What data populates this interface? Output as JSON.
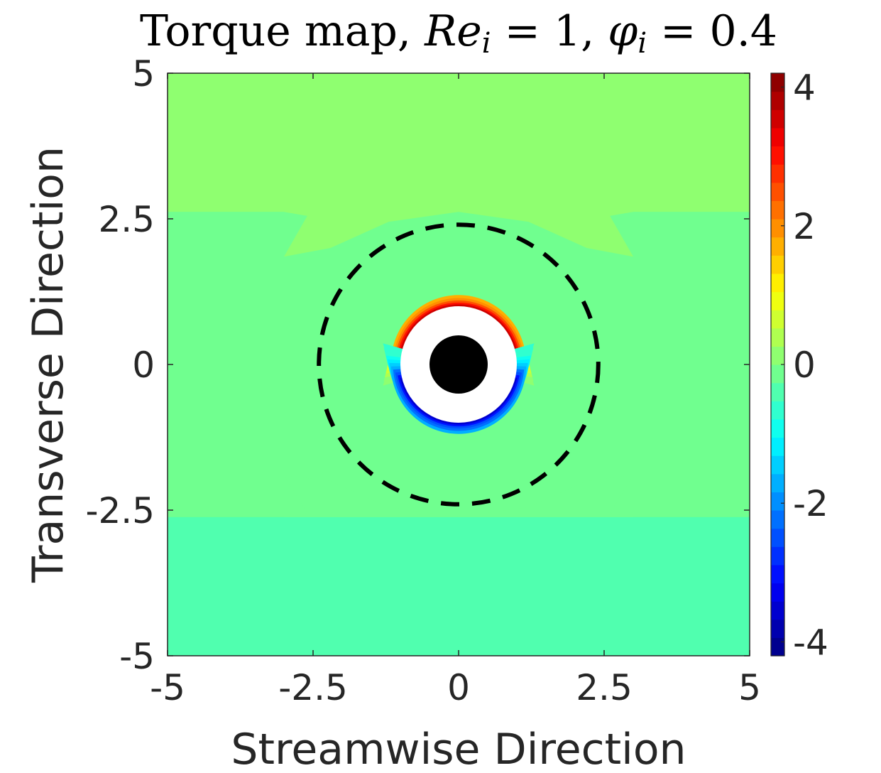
{
  "chart_data": {
    "type": "heatmap",
    "title_parts": {
      "prefix": "Torque map, ",
      "re_symbol": "Re",
      "re_sub": "i",
      "re_eq": " = 1, ",
      "phi_symbol": "φ",
      "phi_sub": "i",
      "phi_eq": " = 0.4"
    },
    "xlabel": "Streamwise Direction",
    "ylabel": "Transverse Direction",
    "xlim": [
      -5,
      5
    ],
    "ylim": [
      -5,
      5
    ],
    "x_ticks": [
      -5,
      -2.5,
      0,
      2.5,
      5
    ],
    "y_ticks": [
      -5,
      -2.5,
      0,
      2.5,
      5
    ],
    "x_tick_labels": [
      "-5",
      "-2.5",
      "0",
      "2.5",
      "5"
    ],
    "y_tick_labels": [
      "-5",
      "-2.5",
      "0",
      "2.5",
      "5"
    ],
    "colorbar": {
      "range": [
        -4.2,
        4.2
      ],
      "ticks": [
        -4,
        -2,
        0,
        2,
        4
      ],
      "tick_labels": [
        "-4",
        "-2",
        "0",
        "2",
        "4"
      ],
      "levels": 32,
      "colormap": "jet"
    },
    "field_levels": {
      "upper_region": 0.25,
      "middle_region": -0.15,
      "lower_region": -0.45,
      "top_lobe_max": 4.0,
      "bottom_lobe_min": -3.9
    },
    "particle_radius": 0.5,
    "excluded_radius": 1.0,
    "lobe_radius": 1.35,
    "dashed_circle_radius": 2.4,
    "upper_boundary_y": 2.62,
    "lower_boundary_y": -2.62,
    "colors": {
      "particle": "#000000",
      "excluded": "#ffffff",
      "dashed_circle": "#000000"
    }
  }
}
